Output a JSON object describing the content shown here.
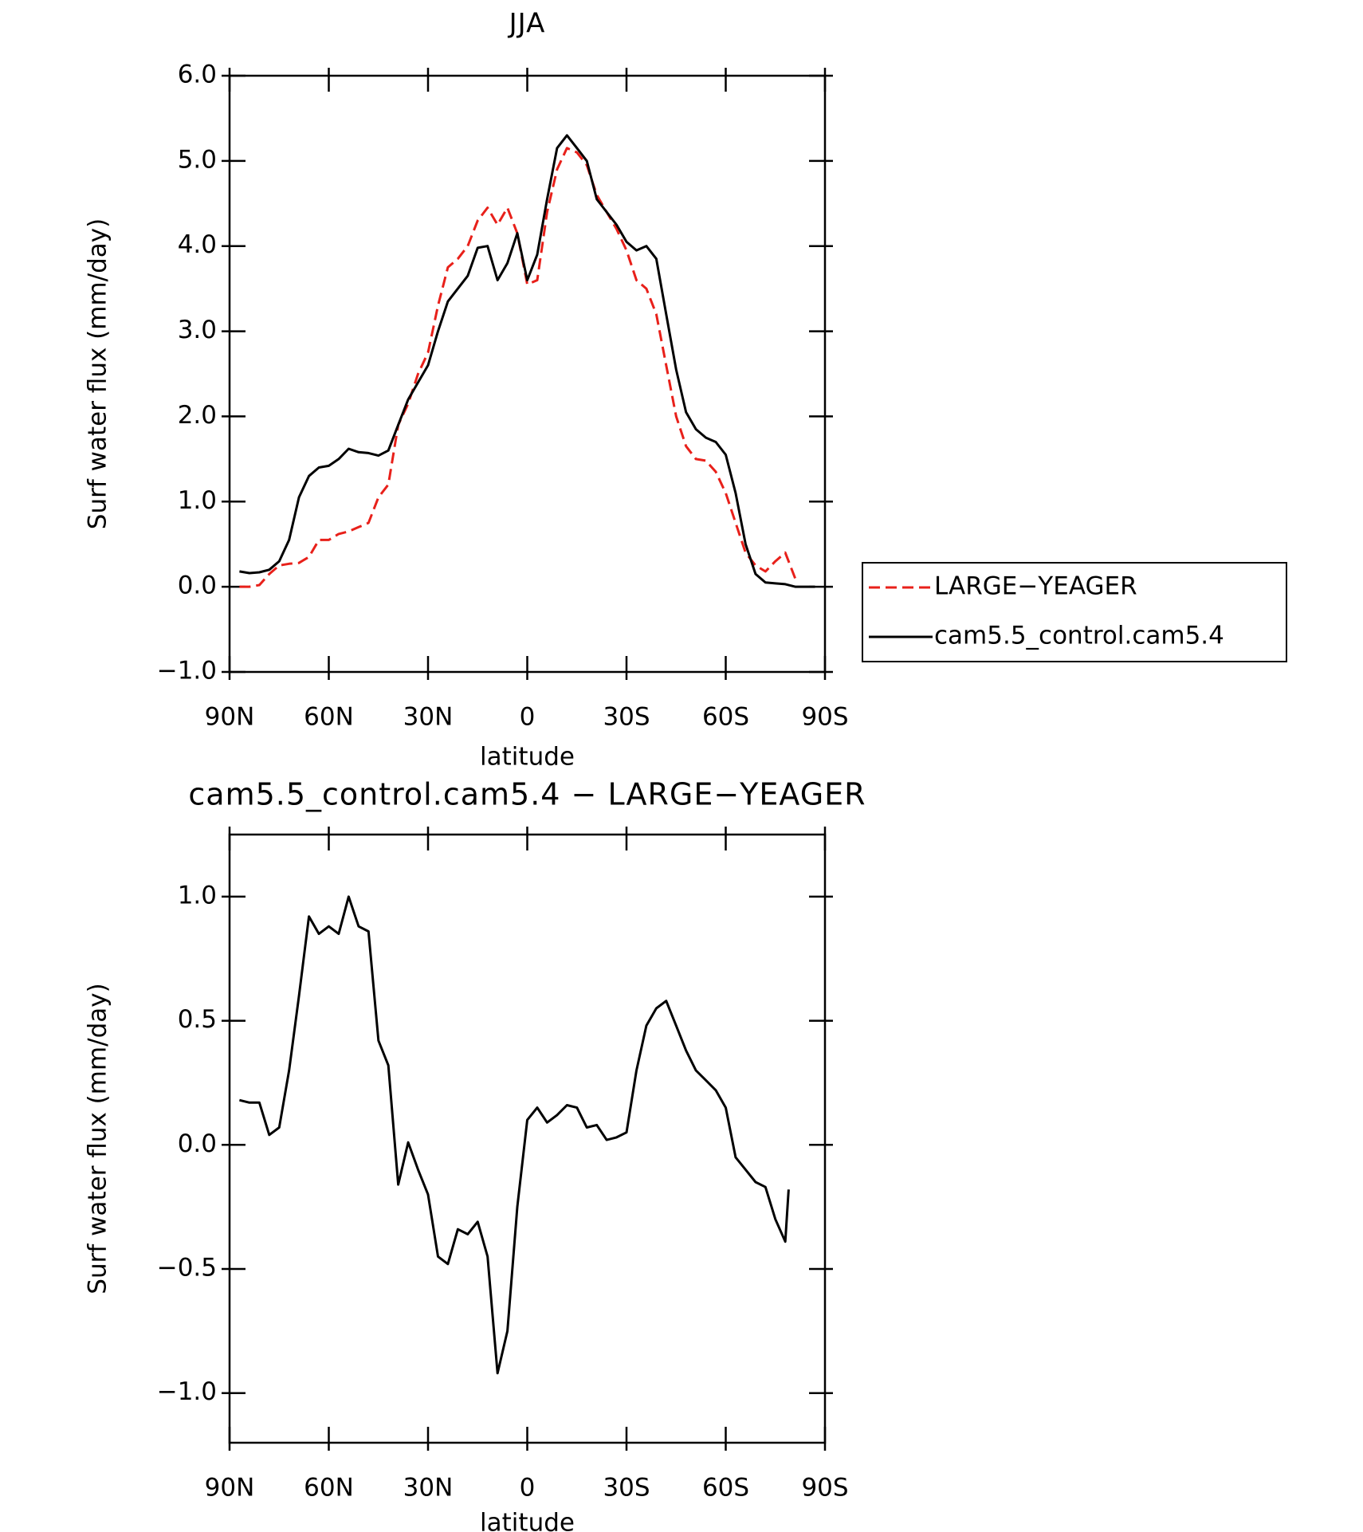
{
  "chart_data": [
    {
      "type": "line",
      "title": "JJA",
      "x_label": "latitude",
      "y_label": "Surf water flux (mm/day)",
      "x": [
        87,
        84,
        81,
        78,
        75,
        72,
        69,
        66,
        63,
        60,
        57,
        54,
        51,
        48,
        45,
        42,
        39,
        36,
        33,
        30,
        27,
        24,
        21,
        18,
        15,
        12,
        9,
        6,
        3,
        0,
        -3,
        -6,
        -9,
        -12,
        -15,
        -18,
        -21,
        -24,
        -27,
        -30,
        -33,
        -36,
        -39,
        -42,
        -45,
        -48,
        -51,
        -54,
        -57,
        -60,
        -63,
        -66,
        -69,
        -72,
        -75,
        -78,
        -81,
        -84,
        -87
      ],
      "series": [
        {
          "name": "LARGE−YEAGER",
          "color": "#e8201a",
          "dash": true,
          "values": [
            0.0,
            0.0,
            0.02,
            0.15,
            0.25,
            0.27,
            0.28,
            0.35,
            0.55,
            0.55,
            0.62,
            0.65,
            0.7,
            0.75,
            1.05,
            1.2,
            1.9,
            2.15,
            2.5,
            2.75,
            3.3,
            3.75,
            3.85,
            4.0,
            4.3,
            4.45,
            4.25,
            4.45,
            4.15,
            3.55,
            3.6,
            4.4,
            4.9,
            5.15,
            5.1,
            4.95,
            4.6,
            4.4,
            4.2,
            3.95,
            3.6,
            3.5,
            3.2,
            2.6,
            2.0,
            1.65,
            1.5,
            1.48,
            1.35,
            1.1,
            0.75,
            0.4,
            0.25,
            0.18,
            0.3,
            0.4,
            0.1,
            null,
            null
          ]
        },
        {
          "name": "cam5.5_control.cam5.4",
          "color": "#000000",
          "dash": false,
          "values": [
            0.18,
            0.16,
            0.17,
            0.2,
            0.3,
            0.55,
            1.05,
            1.3,
            1.4,
            1.42,
            1.5,
            1.62,
            1.58,
            1.57,
            1.54,
            1.6,
            1.9,
            2.2,
            2.4,
            2.6,
            3.0,
            3.35,
            3.5,
            3.65,
            3.98,
            4.0,
            3.6,
            3.8,
            4.15,
            3.6,
            3.9,
            4.55,
            5.15,
            5.3,
            5.15,
            5.0,
            4.55,
            4.4,
            4.25,
            4.05,
            3.95,
            4.0,
            3.85,
            3.2,
            2.55,
            2.05,
            1.85,
            1.75,
            1.7,
            1.55,
            1.1,
            0.5,
            0.15,
            0.05,
            0.04,
            0.03,
            0.0,
            0.0,
            0.0
          ]
        }
      ],
      "xlim": [
        90,
        -90
      ],
      "xticks": [
        {
          "value": 90,
          "label": "90N"
        },
        {
          "value": 60,
          "label": "60N"
        },
        {
          "value": 30,
          "label": "30N"
        },
        0,
        {
          "value": -30,
          "label": "30S"
        },
        {
          "value": -60,
          "label": "60S"
        },
        {
          "value": -90,
          "label": "90S"
        }
      ],
      "ylim": [
        -1,
        6
      ],
      "yticks": [
        {
          "value": -1,
          "label": "−1.0"
        },
        {
          "value": 0,
          "label": "0.0"
        },
        {
          "value": 1,
          "label": "1.0"
        },
        {
          "value": 2,
          "label": "2.0"
        },
        {
          "value": 3,
          "label": "3.0"
        },
        {
          "value": 4,
          "label": "4.0"
        },
        {
          "value": 5,
          "label": "5.0"
        },
        {
          "value": 6,
          "label": "6.0"
        }
      ],
      "legend": "right"
    },
    {
      "type": "line",
      "title": "cam5.5_control.cam5.4 − LARGE−YEAGER",
      "x_label": "latitude",
      "y_label": "Surf water flux (mm/day)",
      "x": [
        87,
        84,
        81,
        78,
        75,
        72,
        69,
        66,
        63,
        60,
        57,
        54,
        51,
        48,
        45,
        42,
        39,
        36,
        33,
        30,
        27,
        24,
        21,
        18,
        15,
        12,
        9,
        6,
        3,
        0,
        -3,
        -6,
        -9,
        -12,
        -15,
        -18,
        -21,
        -24,
        -27,
        -30,
        -33,
        -36,
        -39,
        -42,
        -45,
        -48,
        -51,
        -54,
        -57,
        -60,
        -63,
        -66,
        -69,
        -72,
        -75,
        -78,
        -79
      ],
      "series": [
        {
          "color": "#000000",
          "dash": false,
          "values": [
            0.18,
            0.17,
            0.17,
            0.04,
            0.07,
            0.3,
            0.6,
            0.92,
            0.85,
            0.88,
            0.85,
            1.0,
            0.88,
            0.86,
            0.42,
            0.32,
            -0.16,
            0.01,
            -0.1,
            -0.2,
            -0.45,
            -0.48,
            -0.34,
            -0.36,
            -0.31,
            -0.45,
            -0.92,
            -0.75,
            -0.25,
            0.1,
            0.15,
            0.09,
            0.12,
            0.16,
            0.15,
            0.07,
            0.08,
            0.02,
            0.03,
            0.05,
            0.3,
            0.48,
            0.55,
            0.58,
            0.48,
            0.38,
            0.3,
            0.26,
            0.22,
            0.15,
            -0.05,
            -0.1,
            -0.15,
            -0.17,
            -0.3,
            -0.39,
            -0.18
          ]
        }
      ],
      "xlim": [
        90,
        -90
      ],
      "xticks": [
        {
          "value": 90,
          "label": "90N"
        },
        {
          "value": 60,
          "label": "60N"
        },
        {
          "value": 30,
          "label": "30N"
        },
        0,
        {
          "value": -30,
          "label": "30S"
        },
        {
          "value": -60,
          "label": "60S"
        },
        {
          "value": -90,
          "label": "90S"
        }
      ],
      "ylim": [
        -1.2,
        1.25
      ],
      "yticks": [
        {
          "value": -1,
          "label": "−1.0"
        },
        {
          "value": -0.5,
          "label": "−0.5"
        },
        {
          "value": 0,
          "label": "0.0"
        },
        {
          "value": 0.5,
          "label": "0.5"
        },
        {
          "value": 1,
          "label": "1.0"
        }
      ]
    }
  ]
}
